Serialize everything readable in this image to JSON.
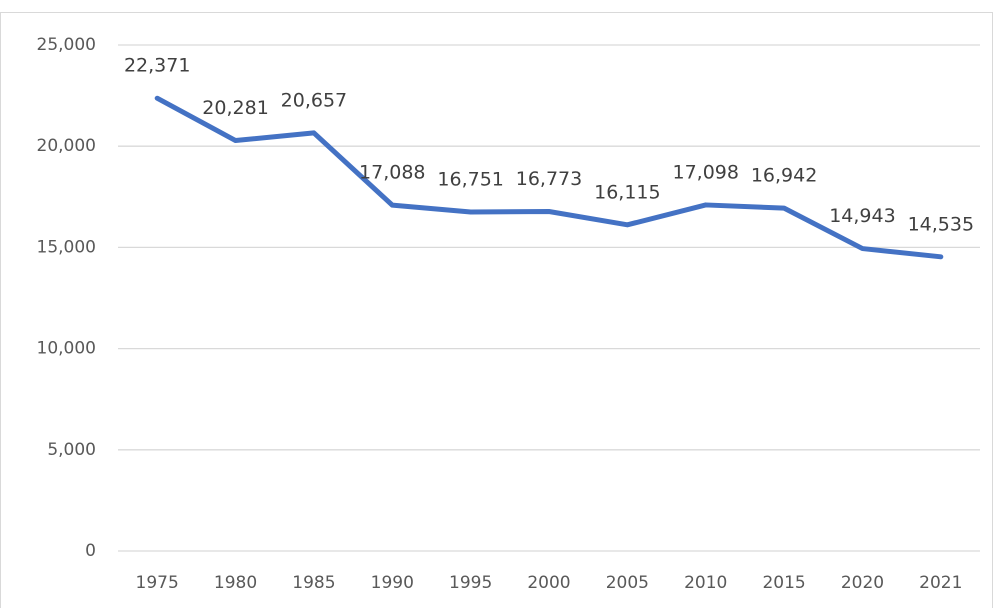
{
  "chart_data": {
    "type": "line",
    "categories": [
      "1975",
      "1980",
      "1985",
      "1990",
      "1995",
      "2000",
      "2005",
      "2010",
      "2015",
      "2020",
      "2021"
    ],
    "values": [
      22371,
      20281,
      20657,
      17088,
      16751,
      16773,
      16115,
      17098,
      16942,
      14943,
      14535
    ],
    "value_labels": [
      "22,371",
      "20,281",
      "20,657",
      "17,088",
      "16,751",
      "16,773",
      "16,115",
      "17,098",
      "16,942",
      "14,943",
      "14,535"
    ],
    "color": "#4472c4",
    "ylim": [
      0,
      25000
    ],
    "yticks": [
      0,
      {
        "value": 5000,
        "label": "5,000"
      },
      {
        "value": 10000,
        "label": "10,000"
      },
      {
        "value": 15000,
        "label": "15,000"
      },
      {
        "value": 20000,
        "label": "20,000"
      },
      {
        "value": 25000,
        "label": "25,000"
      }
    ],
    "grid": true
  }
}
